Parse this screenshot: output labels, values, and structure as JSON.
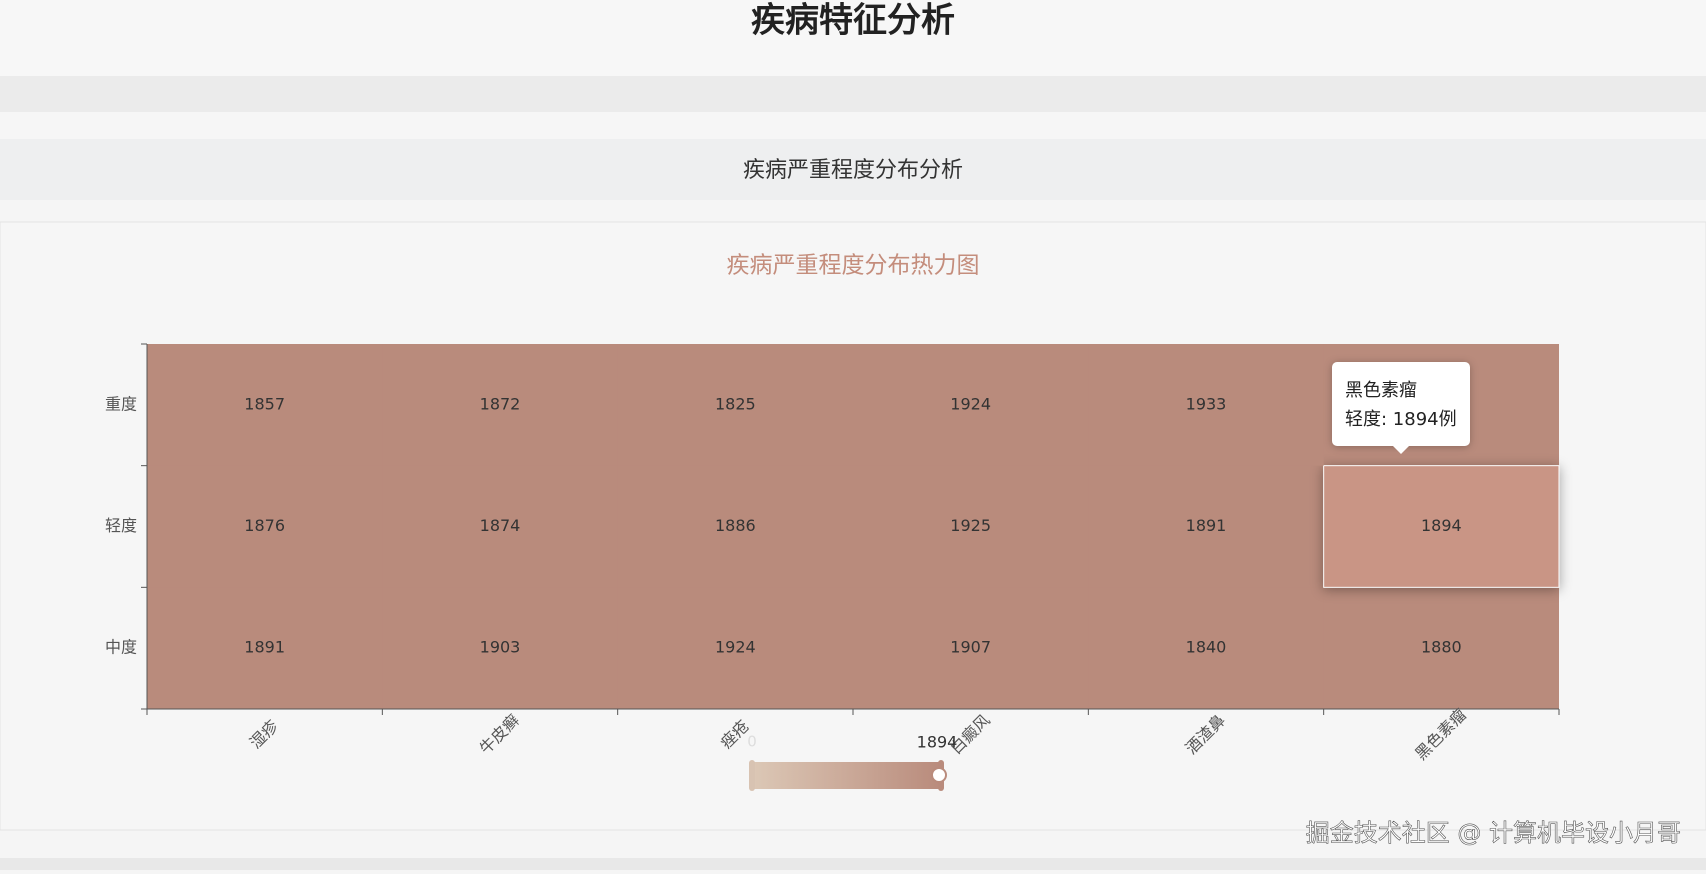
{
  "header": {
    "title": "疾病特征分析"
  },
  "section": {
    "title": "疾病严重程度分布分析"
  },
  "chart_data": {
    "type": "heatmap",
    "title": "疾病严重程度分布热力图",
    "categories": [
      "湿疹",
      "牛皮癣",
      "痤疮",
      "白癜风",
      "酒渣鼻",
      "黑色素瘤"
    ],
    "rows": [
      "中度",
      "轻度",
      "重度"
    ],
    "values": [
      [
        1891,
        1903,
        1924,
        1907,
        1840,
        1880
      ],
      [
        1876,
        1874,
        1886,
        1925,
        1891,
        1894
      ],
      [
        1857,
        1872,
        1825,
        1924,
        1933,
        null
      ]
    ],
    "color": "#b98b7c",
    "highlight_color": "#c99585",
    "visual_map": {
      "min": 0,
      "value": 1894,
      "colors": [
        "#dcc8b6",
        "#b98b7c"
      ]
    },
    "tooltip": {
      "title": "黑色素瘤",
      "text": "轻度: 1894例"
    }
  },
  "watermark": "掘金技术社区 @ 计算机毕设小月哥"
}
